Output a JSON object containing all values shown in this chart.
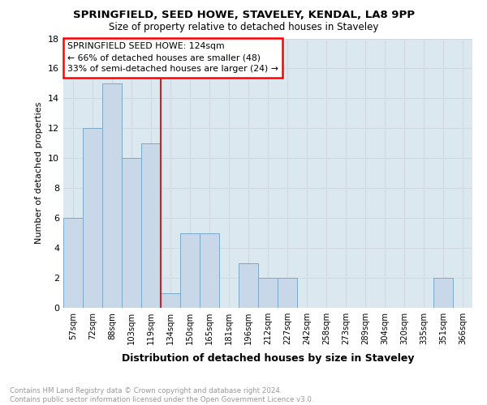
{
  "title1": "SPRINGFIELD, SEED HOWE, STAVELEY, KENDAL, LA8 9PP",
  "title2": "Size of property relative to detached houses in Staveley",
  "xlabel": "Distribution of detached houses by size in Staveley",
  "ylabel": "Number of detached properties",
  "categories": [
    "57sqm",
    "72sqm",
    "88sqm",
    "103sqm",
    "119sqm",
    "134sqm",
    "150sqm",
    "165sqm",
    "181sqm",
    "196sqm",
    "212sqm",
    "227sqm",
    "242sqm",
    "258sqm",
    "273sqm",
    "289sqm",
    "304sqm",
    "320sqm",
    "335sqm",
    "351sqm",
    "366sqm"
  ],
  "values": [
    6,
    12,
    15,
    10,
    11,
    1,
    5,
    5,
    0,
    3,
    2,
    2,
    0,
    0,
    0,
    0,
    0,
    0,
    0,
    2,
    0
  ],
  "bar_color": "#c8d8e8",
  "bar_edge_color": "#7aaac8",
  "property_line_x": 4.5,
  "annotation_line1": "SPRINGFIELD SEED HOWE: 124sqm",
  "annotation_line2": "← 66% of detached houses are smaller (48)",
  "annotation_line3": "33% of semi-detached houses are larger (24) →",
  "annotation_box_color": "white",
  "annotation_box_edge_color": "red",
  "vline_color": "#cc2222",
  "footer_text": "Contains HM Land Registry data © Crown copyright and database right 2024.\nContains public sector information licensed under the Open Government Licence v3.0.",
  "ylim": [
    0,
    18
  ],
  "yticks": [
    0,
    2,
    4,
    6,
    8,
    10,
    12,
    14,
    16,
    18
  ],
  "grid_color": "#d0d8e0",
  "bg_color": "#dce8f0"
}
